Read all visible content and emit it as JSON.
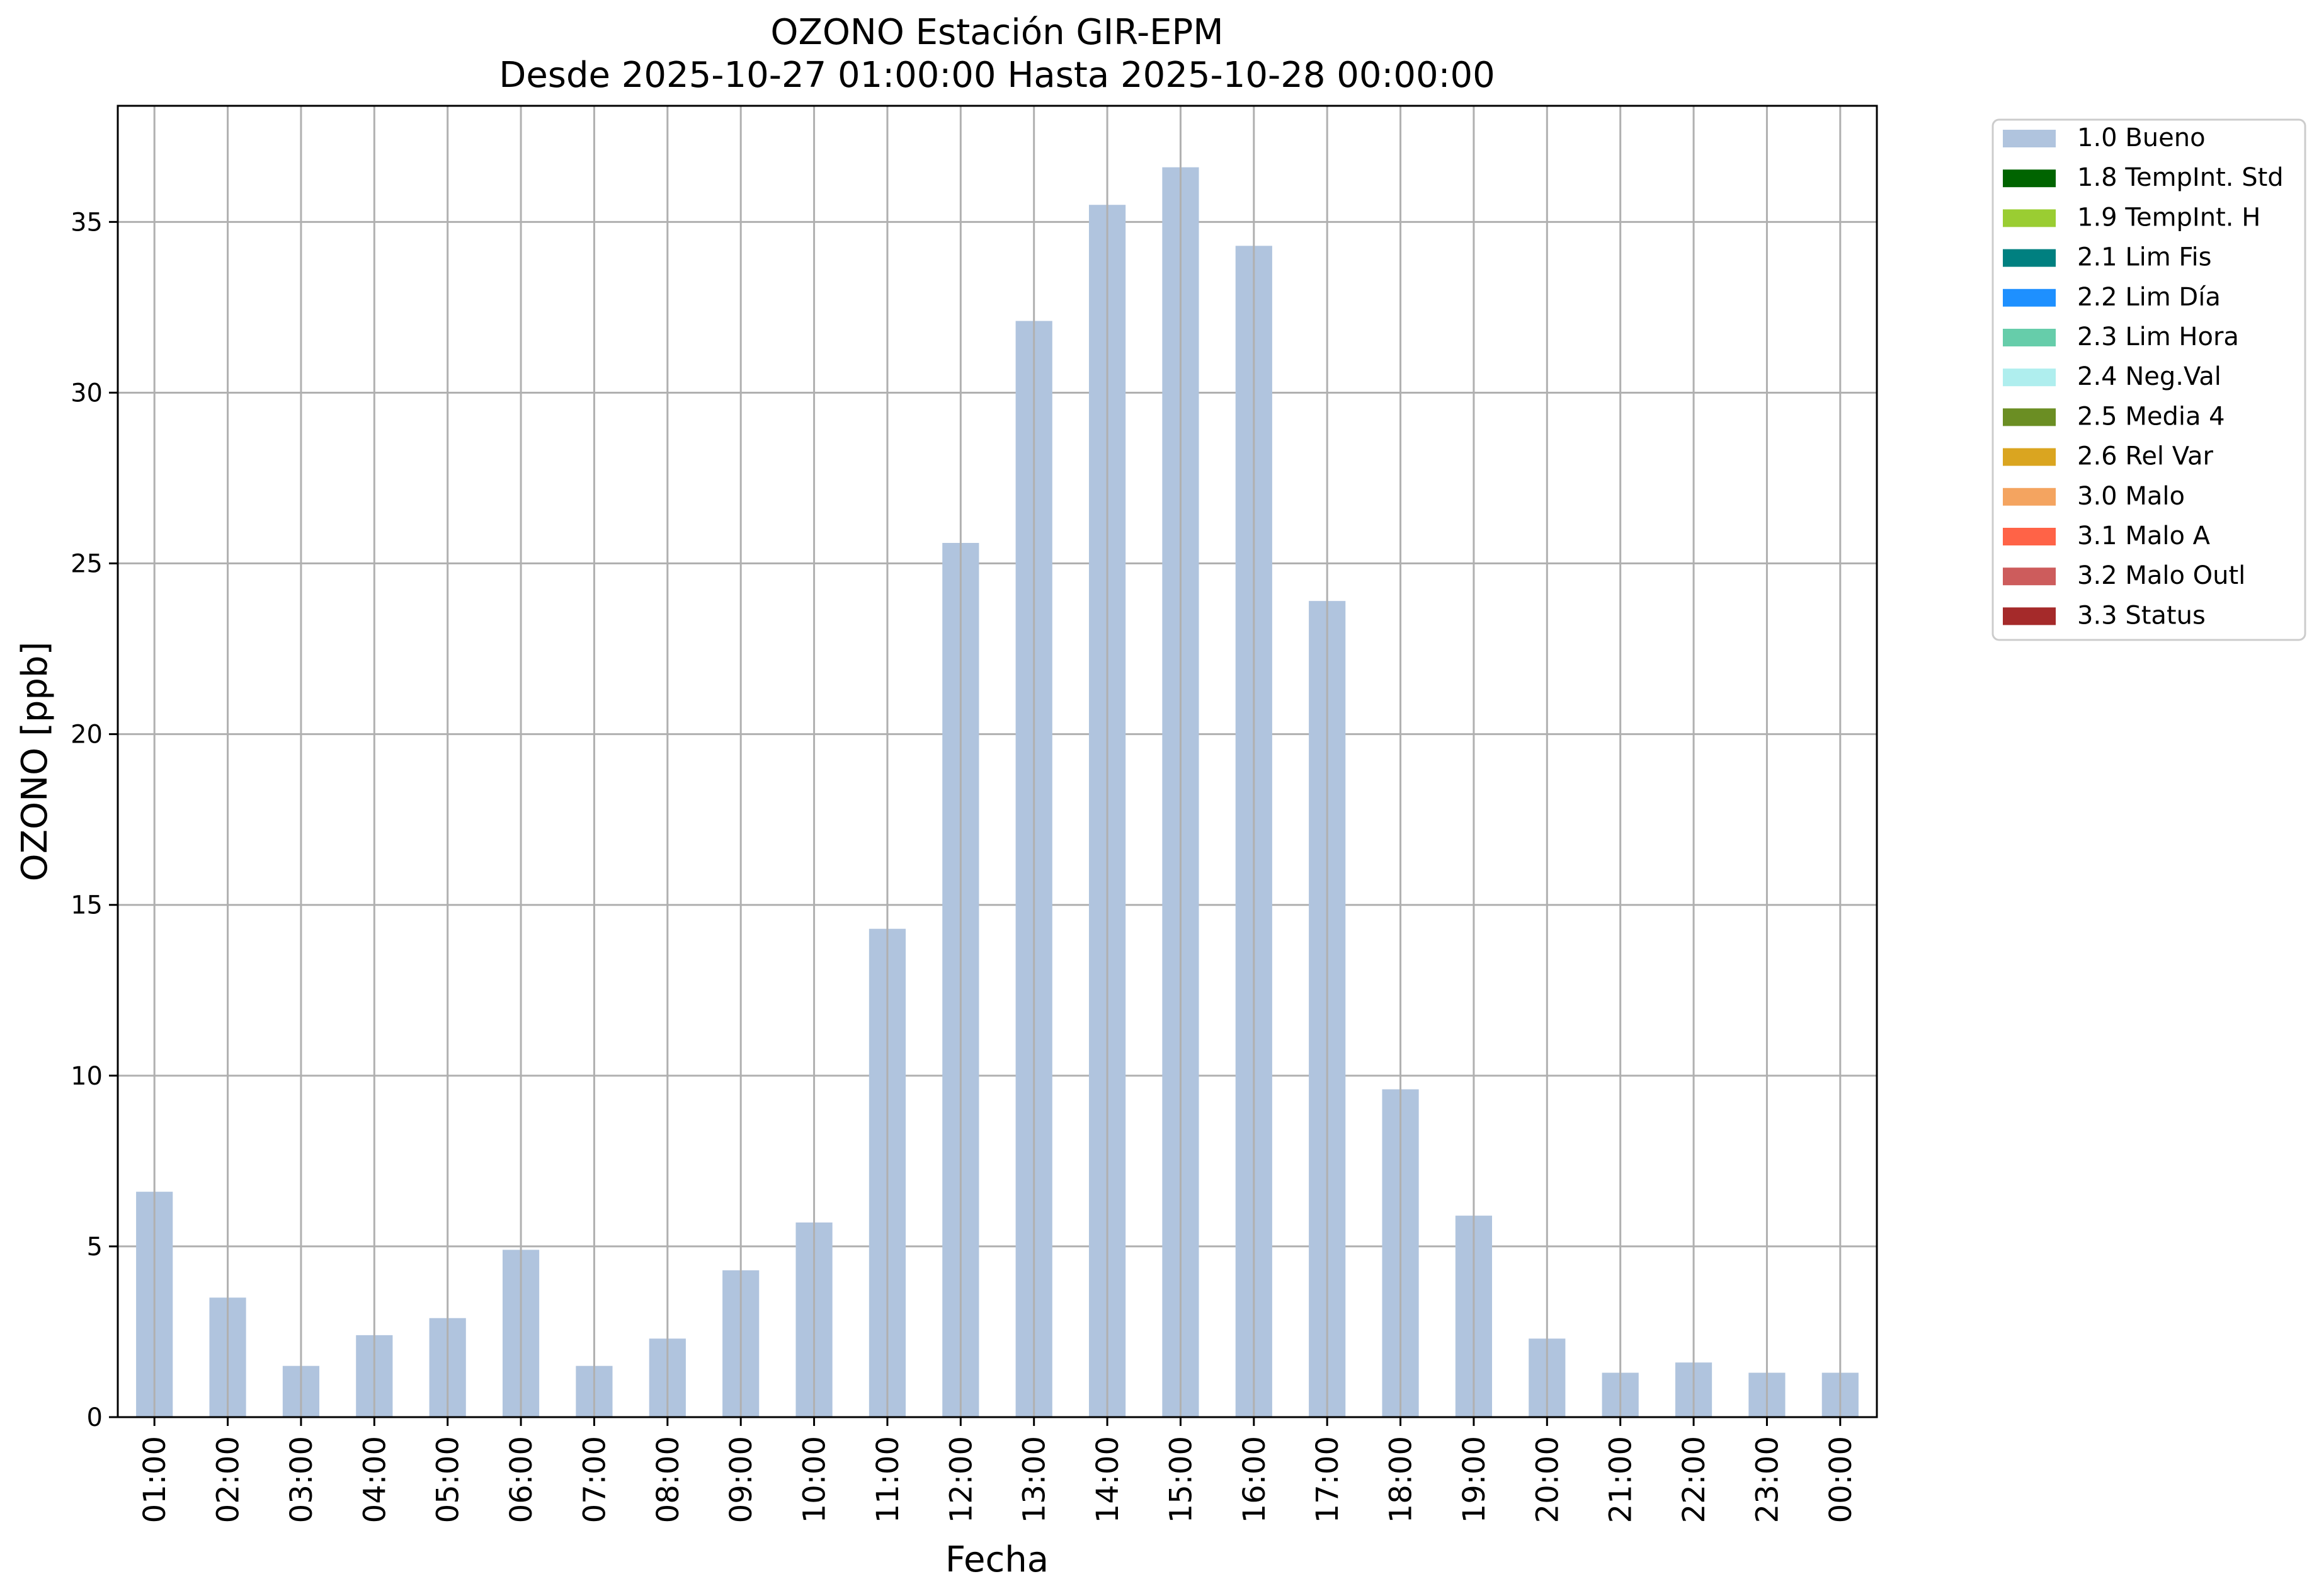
{
  "chart_data": {
    "type": "bar",
    "title": "OZONO Estación GIR-EPM",
    "subtitle": "Desde 2025-10-27 01:00:00 Hasta 2025-10-28 00:00:00",
    "xlabel": "Fecha",
    "ylabel": "OZONO [ppb]",
    "categories": [
      "01:00",
      "02:00",
      "03:00",
      "04:00",
      "05:00",
      "06:00",
      "07:00",
      "08:00",
      "09:00",
      "10:00",
      "11:00",
      "12:00",
      "13:00",
      "14:00",
      "15:00",
      "16:00",
      "17:00",
      "18:00",
      "19:00",
      "20:00",
      "21:00",
      "22:00",
      "23:00",
      "00:00"
    ],
    "series": [
      {
        "name": "1.0 Bueno",
        "color": "#b0c4de",
        "values": [
          6.6,
          3.5,
          1.5,
          2.4,
          2.9,
          4.9,
          1.5,
          2.3,
          4.3,
          5.7,
          14.3,
          25.6,
          32.1,
          35.5,
          36.6,
          34.3,
          23.9,
          9.6,
          5.9,
          2.3,
          1.3,
          1.6,
          1.3,
          1.3
        ]
      }
    ],
    "ylim": [
      0,
      38.4
    ],
    "yticks": [
      0,
      5,
      10,
      15,
      20,
      25,
      30,
      35
    ],
    "grid": true,
    "legend_position": "outside-top-right",
    "legend": [
      {
        "label": "1.0 Bueno",
        "color": "#b0c4de"
      },
      {
        "label": "1.8 TempInt. Std",
        "color": "#006400"
      },
      {
        "label": "1.9 TempInt. H",
        "color": "#9acd32"
      },
      {
        "label": "2.1 Lim Fis",
        "color": "#008080"
      },
      {
        "label": "2.2 Lim Día",
        "color": "#1e90ff"
      },
      {
        "label": "2.3 Lim Hora",
        "color": "#66cdaa"
      },
      {
        "label": "2.4 Neg.Val",
        "color": "#afeeee"
      },
      {
        "label": "2.5 Media 4",
        "color": "#6b8e23"
      },
      {
        "label": "2.6 Rel Var",
        "color": "#daa520"
      },
      {
        "label": "3.0 Malo",
        "color": "#f4a460"
      },
      {
        "label": "3.1 Malo A",
        "color": "#ff6347"
      },
      {
        "label": "3.2 Malo Outl",
        "color": "#cd5c5c"
      },
      {
        "label": "3.3 Status",
        "color": "#a52a2a"
      }
    ]
  }
}
